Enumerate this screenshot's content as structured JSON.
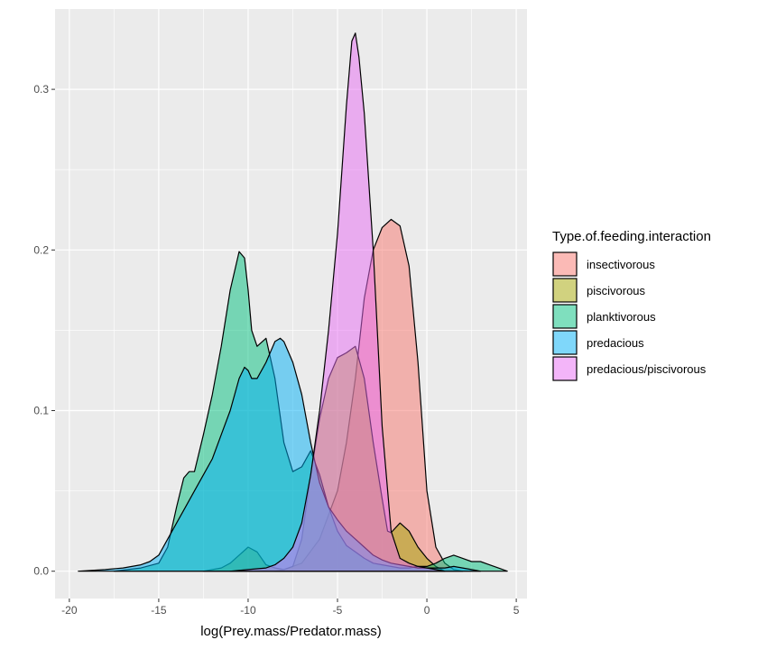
{
  "chart_data": {
    "type": "area",
    "xlabel": "log(Prey.mass/Predator.mass)",
    "ylabel": "",
    "xlim": [
      -20.8,
      5.6
    ],
    "ylim": [
      -0.017,
      0.35
    ],
    "xticks": [
      -20,
      -15,
      -10,
      -5,
      0,
      5
    ],
    "yticks": [
      0.0,
      0.1,
      0.2,
      0.3
    ],
    "ytick_labels": [
      "0.0",
      "0.1",
      "0.2",
      "0.3"
    ],
    "grid": true,
    "legend": {
      "title": "Type.of.feeding.interaction",
      "position": "right"
    },
    "series": [
      {
        "name": "insectivorous",
        "color": "#F8766D",
        "x": [
          -8.5,
          -8,
          -7,
          -6,
          -5,
          -4.5,
          -4,
          -3.5,
          -3,
          -2.5,
          -2,
          -1.5,
          -1,
          -0.5,
          0,
          0.5,
          1,
          1.5,
          2
        ],
        "y": [
          0,
          0.001,
          0.005,
          0.02,
          0.05,
          0.08,
          0.12,
          0.17,
          0.2,
          0.214,
          0.219,
          0.215,
          0.19,
          0.13,
          0.05,
          0.015,
          0.005,
          0.001,
          0
        ]
      },
      {
        "name": "piscivorous",
        "color": "#A3A500",
        "x": [
          -12.5,
          -11.5,
          -11,
          -10.5,
          -10,
          -9.5,
          -9,
          -8.5,
          -8,
          -7.5,
          -7,
          -6.5,
          -6,
          -5.5,
          -5,
          -4.5,
          -4,
          -3.5,
          -3,
          -2.5,
          -2.2,
          -2,
          -1.5,
          -1,
          -0.5,
          0,
          0.5,
          1
        ],
        "y": [
          0,
          0.002,
          0.005,
          0.01,
          0.015,
          0.012,
          0.004,
          0.002,
          0.001,
          0.003,
          0.02,
          0.06,
          0.095,
          0.12,
          0.133,
          0.136,
          0.14,
          0.12,
          0.08,
          0.045,
          0.025,
          0.024,
          0.03,
          0.025,
          0.015,
          0.008,
          0.003,
          0
        ]
      },
      {
        "name": "planktivorous",
        "color": "#00BF7D",
        "x": [
          -17.5,
          -16,
          -15,
          -14.5,
          -14,
          -13.6,
          -13.3,
          -13,
          -12.5,
          -12,
          -11.5,
          -11,
          -10.5,
          -10.2,
          -10,
          -9.8,
          -9.5,
          -9,
          -8.5,
          -8,
          -7.5,
          -7,
          -6.5,
          -6,
          -5.5,
          -5,
          -4.5,
          -4,
          -3.5,
          -3,
          -2.5,
          -2,
          -1.5,
          -1,
          -0.5,
          0,
          0.5,
          1,
          1.5,
          2,
          2.5,
          3,
          3.5,
          4,
          4.5
        ],
        "y": [
          0,
          0.002,
          0.005,
          0.015,
          0.04,
          0.058,
          0.062,
          0.062,
          0.085,
          0.11,
          0.14,
          0.175,
          0.199,
          0.195,
          0.175,
          0.15,
          0.14,
          0.145,
          0.12,
          0.08,
          0.062,
          0.065,
          0.075,
          0.06,
          0.04,
          0.025,
          0.016,
          0.012,
          0.008,
          0.005,
          0.004,
          0.003,
          0.002,
          0.002,
          0.003,
          0.003,
          0.005,
          0.008,
          0.01,
          0.008,
          0.006,
          0.006,
          0.004,
          0.002,
          0
        ]
      },
      {
        "name": "predacious",
        "color": "#00B0F6",
        "x": [
          -19.5,
          -18,
          -17,
          -16.5,
          -16,
          -15.5,
          -15,
          -14.5,
          -14,
          -13.5,
          -13,
          -12.5,
          -12,
          -11.5,
          -11,
          -10.5,
          -10.2,
          -10,
          -9.8,
          -9.5,
          -9,
          -8.5,
          -8.2,
          -8,
          -7.5,
          -7,
          -6.5,
          -6,
          -5.5,
          -5,
          -4.5,
          -4,
          -3.5,
          -3,
          -2.5,
          -2,
          -1.5,
          -1,
          -0.5,
          0,
          0.5,
          1,
          1.5,
          2,
          2.5,
          3
        ],
        "y": [
          0,
          0.001,
          0.002,
          0.003,
          0.004,
          0.006,
          0.01,
          0.02,
          0.03,
          0.04,
          0.05,
          0.06,
          0.07,
          0.085,
          0.1,
          0.12,
          0.127,
          0.125,
          0.12,
          0.12,
          0.13,
          0.143,
          0.145,
          0.143,
          0.13,
          0.11,
          0.08,
          0.055,
          0.04,
          0.032,
          0.025,
          0.02,
          0.015,
          0.01,
          0.007,
          0.005,
          0.004,
          0.003,
          0.002,
          0.002,
          0.002,
          0.002,
          0.003,
          0.002,
          0.001,
          0
        ]
      },
      {
        "name": "predacious/piscivorous",
        "color": "#E76BF3",
        "x": [
          -11,
          -10,
          -9,
          -8.5,
          -8,
          -7.5,
          -7,
          -6.5,
          -6,
          -5.5,
          -5,
          -4.5,
          -4.2,
          -4,
          -3.8,
          -3.5,
          -3,
          -2.5,
          -2,
          -1.5,
          -1,
          -0.5,
          0,
          0.5,
          1
        ],
        "y": [
          0,
          0.001,
          0.002,
          0.004,
          0.008,
          0.015,
          0.03,
          0.06,
          0.1,
          0.15,
          0.21,
          0.29,
          0.33,
          0.335,
          0.32,
          0.285,
          0.2,
          0.09,
          0.025,
          0.008,
          0.005,
          0.003,
          0.002,
          0.001,
          0
        ]
      }
    ]
  }
}
